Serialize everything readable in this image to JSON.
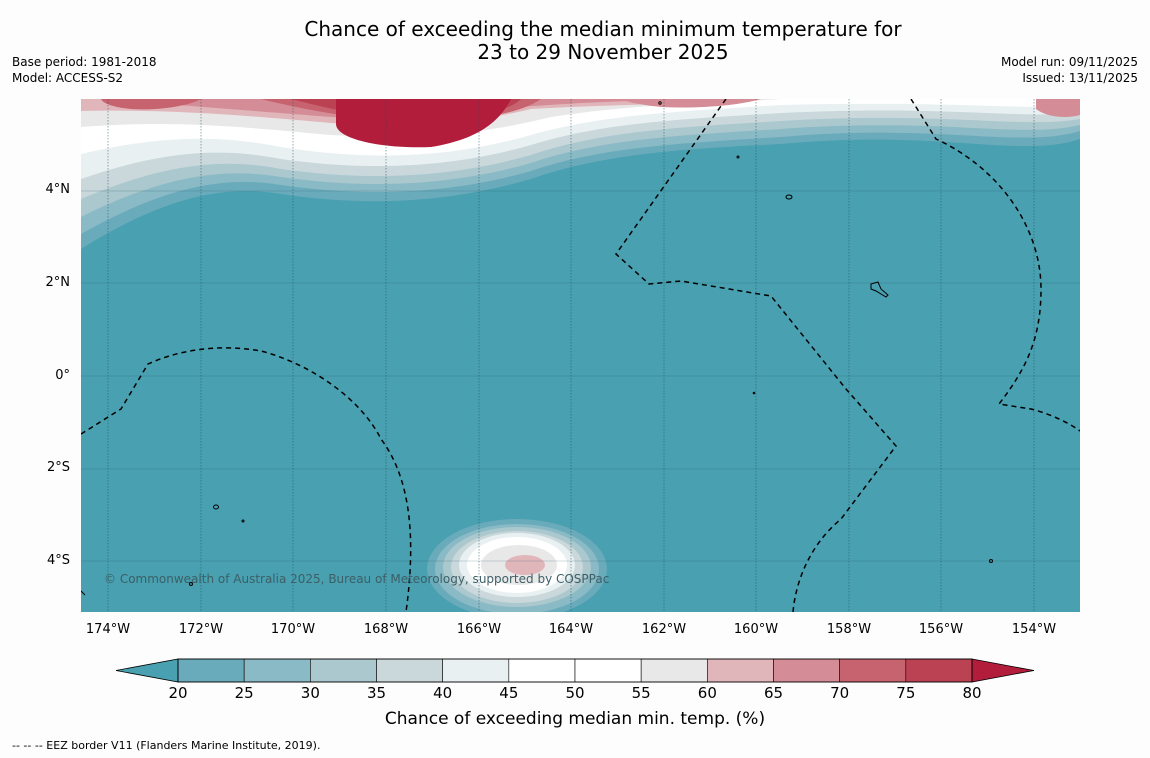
{
  "title": {
    "line1": "Chance of exceeding the median minimum temperature for",
    "line2": "23 to 29 November 2025"
  },
  "meta": {
    "base_period": "Base period: 1981-2018",
    "model": "Model: ACCESS-S2",
    "model_run": "Model run: 09/11/2025",
    "issued": "Issued: 13/11/2025"
  },
  "map": {
    "ocean_color": "#48a0b0",
    "lat_labels": [
      "4°N",
      "2°N",
      "0°",
      "2°S",
      "4°S"
    ],
    "lon_labels": [
      "174°W",
      "172°W",
      "170°W",
      "168°W",
      "166°W",
      "164°W",
      "162°W",
      "160°W",
      "158°W",
      "156°W",
      "154°W"
    ],
    "copyright": "© Commonwealth of Australia 2025, Bureau of Meteorology, supported by COSPPac"
  },
  "colorbar": {
    "label": "Chance of exceeding median min. temp. (%)",
    "ticks": [
      "20",
      "25",
      "30",
      "35",
      "40",
      "45",
      "50",
      "55",
      "60",
      "65",
      "70",
      "75",
      "80"
    ],
    "colors": [
      "#48a0b0",
      "#6aabbb",
      "#8abac5",
      "#aac8cd",
      "#cad8dc",
      "#e9f0f2",
      "#ffffff",
      "#ffffff",
      "#e8e8e8",
      "#e1b6bb",
      "#d48d96",
      "#c7636f",
      "#ba4252",
      "#b31d3c"
    ]
  },
  "footer": "--  --  -- EEZ border V11 (Flanders Marine Institute, 2019)."
}
